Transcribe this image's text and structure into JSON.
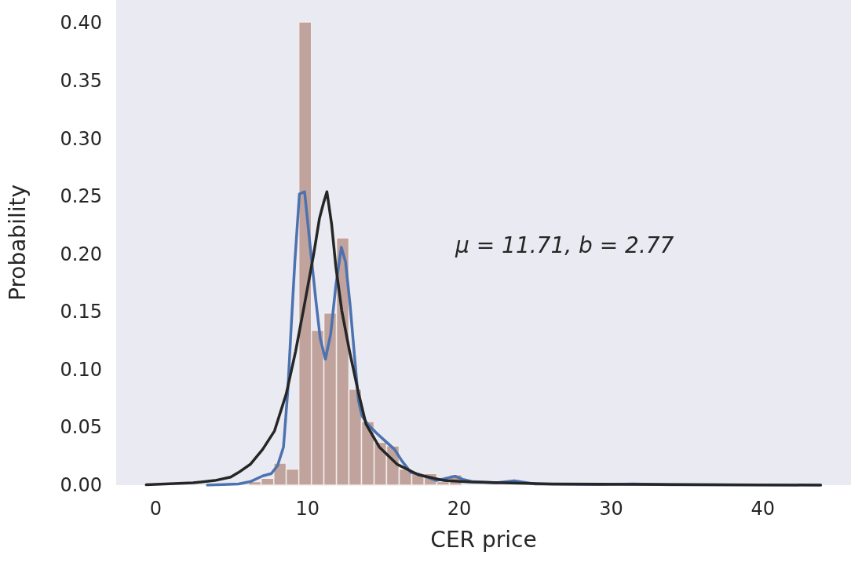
{
  "chart_data": {
    "type": "histogram",
    "xlabel": "CER price",
    "ylabel": "Probability",
    "annotations": [
      "μ = 11.71, b = 2.77"
    ],
    "xlim": [
      -2.6,
      45.8
    ],
    "xticks": [
      0,
      10,
      20,
      30,
      40
    ],
    "ylim": [
      0,
      0.42
    ],
    "yticks": [
      {
        "value": 0,
        "label": "0.00"
      },
      {
        "value": 0.05,
        "label": "0.05"
      },
      {
        "value": 0.1,
        "label": "0.10"
      },
      {
        "value": 0.15,
        "label": "0.15"
      },
      {
        "value": 0.2,
        "label": "0.20"
      },
      {
        "value": 0.25,
        "label": "0.25"
      },
      {
        "value": 0.3,
        "label": "0.30"
      },
      {
        "value": 0.35,
        "label": "0.35"
      },
      {
        "value": 0.4,
        "label": "0.40"
      }
    ],
    "grid": false,
    "series": [
      {
        "type": "histogram",
        "color": "#bfa39c",
        "bins": [
          6.12,
          6.95,
          7.78,
          8.6,
          9.43,
          10.26,
          11.08,
          11.91,
          12.73,
          13.56,
          14.39,
          15.21,
          16.04,
          16.87,
          17.69,
          18.52,
          19.35,
          20.17
        ],
        "values": [
          0.003,
          0.006,
          0.019,
          0.014,
          0.401,
          0.134,
          0.149,
          0.214,
          0.083,
          0.055,
          0.037,
          0.034,
          0.014,
          0.01,
          0.01,
          0.003,
          0.009
        ]
      },
      {
        "type": "line",
        "color": "#4c72b0",
        "x": [
          3.4,
          5.46,
          6.23,
          7.05,
          7.62,
          8.03,
          8.42,
          8.7,
          8.91,
          9.17,
          9.47,
          9.81,
          10.2,
          10.56,
          10.84,
          11.18,
          11.53,
          11.87,
          12.23,
          12.51,
          12.8,
          13.13,
          13.36,
          13.59,
          13.95,
          14.55,
          15.14,
          15.73,
          16.22,
          16.81,
          17.3,
          18.49,
          19.0,
          19.72,
          20.24,
          20.91,
          22.45,
          23.62,
          25.0,
          29.1,
          31.5,
          33.8,
          43.8
        ],
        "values": [
          0,
          0.001,
          0.003,
          0.008,
          0.01,
          0.017,
          0.033,
          0.081,
          0.133,
          0.194,
          0.252,
          0.254,
          0.204,
          0.159,
          0.127,
          0.109,
          0.131,
          0.173,
          0.206,
          0.193,
          0.157,
          0.107,
          0.073,
          0.06,
          0.053,
          0.045,
          0.038,
          0.031,
          0.021,
          0.011,
          0.0096,
          0.004,
          0.0055,
          0.0077,
          0.005,
          0.003,
          0.002,
          0.0037,
          0.001,
          0.0005,
          0.001,
          0.0003,
          0
        ]
      },
      {
        "type": "line",
        "color": "#262626",
        "x": [
          -0.62,
          2.47,
          3.9,
          4.94,
          5.46,
          6.23,
          7.05,
          7.83,
          8.6,
          9.22,
          9.81,
          10.41,
          10.79,
          11.05,
          11.28,
          11.59,
          11.87,
          12.26,
          12.77,
          13.34,
          13.85,
          14.73,
          15.91,
          17.3,
          19.0,
          20.75,
          26.1,
          43.8
        ],
        "values": [
          0.0003,
          0.002,
          0.004,
          0.007,
          0.011,
          0.018,
          0.031,
          0.047,
          0.079,
          0.116,
          0.157,
          0.2,
          0.231,
          0.244,
          0.254,
          0.226,
          0.189,
          0.151,
          0.116,
          0.081,
          0.053,
          0.033,
          0.018,
          0.009,
          0.004,
          0.0027,
          0.001,
          0
        ]
      }
    ]
  }
}
